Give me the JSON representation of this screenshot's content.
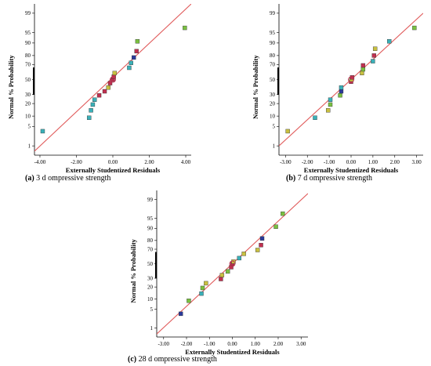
{
  "chart_data": [
    {
      "type": "scatter",
      "panel": "a",
      "xlabel": "Externally Studentized Residuals",
      "ylabel": "Normal % Probability",
      "xticks": [
        "-4.00",
        "-2.00",
        "0.00",
        "2.00",
        "4.00"
      ],
      "xtick_values": [
        -4,
        -2,
        0,
        2,
        4
      ],
      "xlim": [
        -4.3,
        4.3
      ],
      "yticks": [
        "1",
        "5",
        "10",
        "20",
        "30",
        "50",
        "70",
        "80",
        "90",
        "95",
        "99"
      ],
      "ytick_values": [
        1,
        5,
        10,
        20,
        30,
        50,
        70,
        80,
        90,
        95,
        99
      ],
      "y_scale": "normal-probability",
      "fit_line": {
        "x": [
          -4.3,
          4.3
        ],
        "y": [
          0.6,
          99.6
        ]
      },
      "points": [
        {
          "x": -3.85,
          "y": 3.5,
          "color": "#3ab0b8"
        },
        {
          "x": -1.3,
          "y": 9,
          "color": "#3ab0b8"
        },
        {
          "x": -1.2,
          "y": 14,
          "color": "#3ab0b8"
        },
        {
          "x": -1.1,
          "y": 19,
          "color": "#3ab0b8"
        },
        {
          "x": -1.0,
          "y": 24,
          "color": "#3ab0b8"
        },
        {
          "x": -0.75,
          "y": 29,
          "color": "#c03050"
        },
        {
          "x": -0.45,
          "y": 34,
          "color": "#c03050"
        },
        {
          "x": -0.25,
          "y": 39,
          "color": "#c8c040"
        },
        {
          "x": -0.15,
          "y": 45,
          "color": "#c03050"
        },
        {
          "x": 0.0,
          "y": 50,
          "color": "#c03050"
        },
        {
          "x": 0.05,
          "y": 54,
          "color": "#c03050"
        },
        {
          "x": 0.1,
          "y": 59,
          "color": "#c8c040"
        },
        {
          "x": 0.9,
          "y": 66,
          "color": "#3ab0b8"
        },
        {
          "x": 1.0,
          "y": 72,
          "color": "#3ab0b8"
        },
        {
          "x": 1.15,
          "y": 78,
          "color": "#2a3a9a"
        },
        {
          "x": 1.3,
          "y": 84,
          "color": "#c03050"
        },
        {
          "x": 1.35,
          "y": 91,
          "color": "#7ac040"
        },
        {
          "x": 3.95,
          "y": 96.5,
          "color": "#7ac040"
        }
      ],
      "caption_label": "(a)",
      "caption_text": " 3 d ompressive strength"
    },
    {
      "type": "scatter",
      "panel": "b",
      "xlabel": "Externally Studentized Residuals",
      "ylabel": "Normal % Probability",
      "xticks": [
        "-3.00",
        "-2.00",
        "-1.00",
        "0.00",
        "1.00",
        "2.00",
        "3.00"
      ],
      "xtick_values": [
        -3,
        -2,
        -1,
        0,
        1,
        2,
        3
      ],
      "xlim": [
        -3.3,
        3.3
      ],
      "yticks": [
        "1",
        "5",
        "10",
        "20",
        "30",
        "50",
        "70",
        "80",
        "90",
        "95",
        "99"
      ],
      "ytick_values": [
        1,
        5,
        10,
        20,
        30,
        50,
        70,
        80,
        90,
        95,
        99
      ],
      "y_scale": "normal-probability",
      "fit_line": {
        "x": [
          -3.3,
          3.3
        ],
        "y": [
          1.0,
          99.0
        ]
      },
      "points": [
        {
          "x": -2.9,
          "y": 3.5,
          "color": "#c8c040"
        },
        {
          "x": -1.65,
          "y": 9,
          "color": "#3ab0b8"
        },
        {
          "x": -1.05,
          "y": 14,
          "color": "#c8c040"
        },
        {
          "x": -0.95,
          "y": 19,
          "color": "#7ac040"
        },
        {
          "x": -0.95,
          "y": 24,
          "color": "#3ab0b8"
        },
        {
          "x": -0.5,
          "y": 29,
          "color": "#7ac040"
        },
        {
          "x": -0.45,
          "y": 34,
          "color": "#2a3a9a"
        },
        {
          "x": -0.45,
          "y": 39,
          "color": "#3ab0b8"
        },
        {
          "x": 0.0,
          "y": 47,
          "color": "#c03050"
        },
        {
          "x": 0.02,
          "y": 50,
          "color": "#c8c040"
        },
        {
          "x": 0.05,
          "y": 53,
          "color": "#c03050"
        },
        {
          "x": 0.5,
          "y": 59,
          "color": "#c8c040"
        },
        {
          "x": 0.55,
          "y": 64,
          "color": "#7ac040"
        },
        {
          "x": 0.55,
          "y": 69,
          "color": "#c03050"
        },
        {
          "x": 1.0,
          "y": 74,
          "color": "#3ab0b8"
        },
        {
          "x": 1.05,
          "y": 80,
          "color": "#c03050"
        },
        {
          "x": 1.1,
          "y": 86,
          "color": "#c8c040"
        },
        {
          "x": 1.75,
          "y": 91,
          "color": "#3ab0b8"
        },
        {
          "x": 2.9,
          "y": 96.5,
          "color": "#7ac040"
        }
      ],
      "caption_label": "(b)",
      "caption_text": " 7 d ompressive strength"
    },
    {
      "type": "scatter",
      "panel": "c",
      "xlabel": "Externally Studentized Residuals",
      "ylabel": "Normal % Probability",
      "xticks": [
        "-3.00",
        "-2.00",
        "-1.00",
        "0.00",
        "1.00",
        "2.00",
        "3.00"
      ],
      "xtick_values": [
        -3,
        -2,
        -1,
        0,
        1,
        2,
        3
      ],
      "xlim": [
        -3.3,
        3.3
      ],
      "yticks": [
        "1",
        "5",
        "10",
        "20",
        "30",
        "50",
        "70",
        "80",
        "90",
        "95",
        "99"
      ],
      "ytick_values": [
        1,
        5,
        10,
        20,
        30,
        50,
        70,
        80,
        90,
        95,
        99
      ],
      "y_scale": "normal-probability",
      "fit_line": {
        "x": [
          -3.3,
          3.3
        ],
        "y": [
          0.55,
          99.45
        ]
      },
      "points": [
        {
          "x": -2.25,
          "y": 3.5,
          "color": "#2a3a9a"
        },
        {
          "x": -1.9,
          "y": 9,
          "color": "#7ac040"
        },
        {
          "x": -1.35,
          "y": 14,
          "color": "#3ab0b8"
        },
        {
          "x": -1.3,
          "y": 19,
          "color": "#7ac040"
        },
        {
          "x": -1.15,
          "y": 24,
          "color": "#c8c040"
        },
        {
          "x": -0.5,
          "y": 29,
          "color": "#c03050"
        },
        {
          "x": -0.45,
          "y": 34,
          "color": "#c8c040"
        },
        {
          "x": -0.2,
          "y": 39,
          "color": "#7ac040"
        },
        {
          "x": -0.05,
          "y": 45,
          "color": "#c03050"
        },
        {
          "x": 0.0,
          "y": 50,
          "color": "#c03050"
        },
        {
          "x": 0.05,
          "y": 53,
          "color": "#c8c040"
        },
        {
          "x": 0.3,
          "y": 58,
          "color": "#3ab0b8"
        },
        {
          "x": 0.5,
          "y": 64,
          "color": "#c8c040"
        },
        {
          "x": 1.1,
          "y": 69,
          "color": "#c8c040"
        },
        {
          "x": 1.25,
          "y": 75,
          "color": "#c03050"
        },
        {
          "x": 1.3,
          "y": 82,
          "color": "#2a3a9a"
        },
        {
          "x": 1.9,
          "y": 91,
          "color": "#7ac040"
        },
        {
          "x": 2.2,
          "y": 96.5,
          "color": "#7ac040"
        }
      ],
      "caption_label": "(c)",
      "caption_text": " 28 d ompressive strength"
    }
  ]
}
